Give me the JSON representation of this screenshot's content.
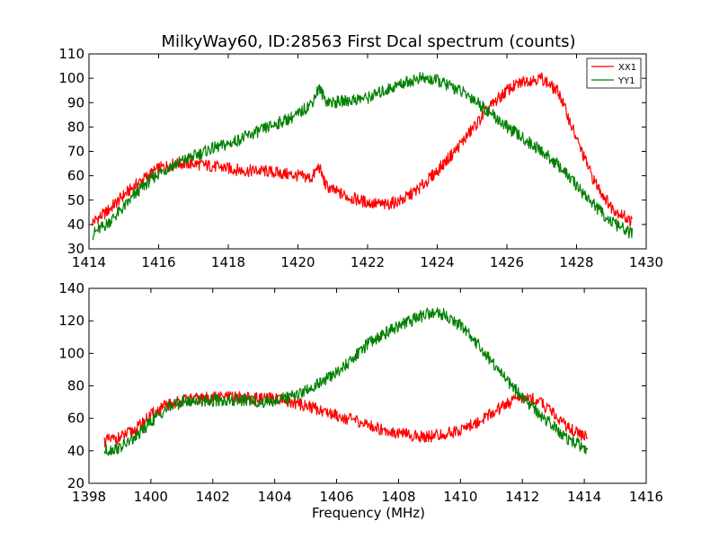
{
  "chart_data": [
    {
      "type": "line",
      "title": "MilkyWay60, ID:28563 First Dcal spectrum (counts)",
      "xlabel": "",
      "ylabel": "",
      "xlim": [
        1414,
        1430
      ],
      "ylim": [
        30,
        110
      ],
      "xticks": [
        1414,
        1416,
        1418,
        1420,
        1422,
        1424,
        1426,
        1428,
        1430
      ],
      "yticks": [
        30,
        40,
        50,
        60,
        70,
        80,
        90,
        100,
        110
      ],
      "legend": {
        "placement": "top-right",
        "entries": [
          "XX1",
          "YY1"
        ]
      },
      "grid": false,
      "series": [
        {
          "name": "XX1",
          "color": "#ff0000",
          "x": [
            1414.1,
            1414.5,
            1415.0,
            1415.5,
            1416.0,
            1416.5,
            1417.0,
            1417.5,
            1418.0,
            1418.5,
            1419.0,
            1419.5,
            1420.0,
            1420.4,
            1420.6,
            1420.8,
            1421.0,
            1421.5,
            1422.0,
            1422.5,
            1423.0,
            1423.5,
            1424.0,
            1424.5,
            1425.0,
            1425.5,
            1426.0,
            1426.5,
            1427.0,
            1427.5,
            1428.0,
            1428.5,
            1429.0,
            1429.6
          ],
          "y": [
            41,
            45,
            52,
            58,
            63,
            65,
            65,
            64,
            63,
            62,
            62,
            61,
            60,
            59,
            64,
            56,
            54,
            51,
            49,
            48,
            50,
            55,
            62,
            70,
            79,
            88,
            95,
            99,
            100,
            94,
            75,
            58,
            47,
            41
          ]
        },
        {
          "name": "YY1",
          "color": "#008000",
          "x": [
            1414.1,
            1414.5,
            1415.0,
            1415.5,
            1416.0,
            1416.5,
            1417.0,
            1417.5,
            1418.0,
            1418.5,
            1419.0,
            1419.5,
            1420.0,
            1420.4,
            1420.6,
            1420.8,
            1421.0,
            1421.5,
            1422.0,
            1422.5,
            1423.0,
            1423.5,
            1424.0,
            1424.5,
            1425.0,
            1425.5,
            1426.0,
            1426.5,
            1427.0,
            1427.5,
            1428.0,
            1428.5,
            1429.0,
            1429.6
          ],
          "y": [
            36,
            40,
            47,
            55,
            61,
            65,
            68,
            71,
            73,
            76,
            79,
            82,
            85,
            90,
            96,
            91,
            90,
            91,
            92,
            95,
            98,
            100,
            99,
            96,
            92,
            86,
            80,
            75,
            70,
            64,
            56,
            48,
            41,
            36
          ]
        }
      ]
    },
    {
      "type": "line",
      "title": "",
      "xlabel": "Frequency (MHz)",
      "ylabel": "",
      "xlim": [
        1398,
        1416
      ],
      "ylim": [
        20,
        140
      ],
      "xticks": [
        1398,
        1400,
        1402,
        1404,
        1406,
        1408,
        1410,
        1412,
        1414,
        1416
      ],
      "yticks": [
        20,
        40,
        60,
        80,
        100,
        120,
        140
      ],
      "grid": false,
      "series": [
        {
          "name": "XX1",
          "color": "#ff0000",
          "x": [
            1398.5,
            1399.0,
            1399.5,
            1400.0,
            1400.5,
            1401.0,
            1401.5,
            1402.0,
            1402.5,
            1403.0,
            1403.5,
            1404.0,
            1404.5,
            1405.0,
            1405.5,
            1406.0,
            1406.5,
            1407.0,
            1407.5,
            1408.0,
            1408.5,
            1409.0,
            1409.5,
            1410.0,
            1410.5,
            1411.0,
            1411.5,
            1412.0,
            1412.5,
            1413.0,
            1413.5,
            1414.1
          ],
          "y": [
            46,
            48,
            53,
            62,
            68,
            71,
            72,
            73,
            73,
            73,
            72,
            72,
            70,
            68,
            65,
            62,
            59,
            56,
            53,
            51,
            49,
            49,
            50,
            53,
            57,
            63,
            69,
            73,
            71,
            63,
            54,
            48
          ]
        },
        {
          "name": "YY1",
          "color": "#008000",
          "x": [
            1398.5,
            1399.0,
            1399.5,
            1400.0,
            1400.5,
            1401.0,
            1401.5,
            1402.0,
            1402.5,
            1403.0,
            1403.5,
            1404.0,
            1404.5,
            1405.0,
            1405.5,
            1406.0,
            1406.5,
            1407.0,
            1407.5,
            1408.0,
            1408.5,
            1409.0,
            1409.5,
            1410.0,
            1410.5,
            1411.0,
            1411.5,
            1412.0,
            1412.5,
            1413.0,
            1413.5,
            1414.1
          ],
          "y": [
            40,
            42,
            48,
            58,
            66,
            70,
            71,
            71,
            71,
            71,
            70,
            71,
            73,
            77,
            82,
            88,
            96,
            106,
            112,
            117,
            121,
            125,
            124,
            117,
            107,
            95,
            83,
            73,
            64,
            55,
            47,
            41
          ]
        }
      ]
    }
  ]
}
